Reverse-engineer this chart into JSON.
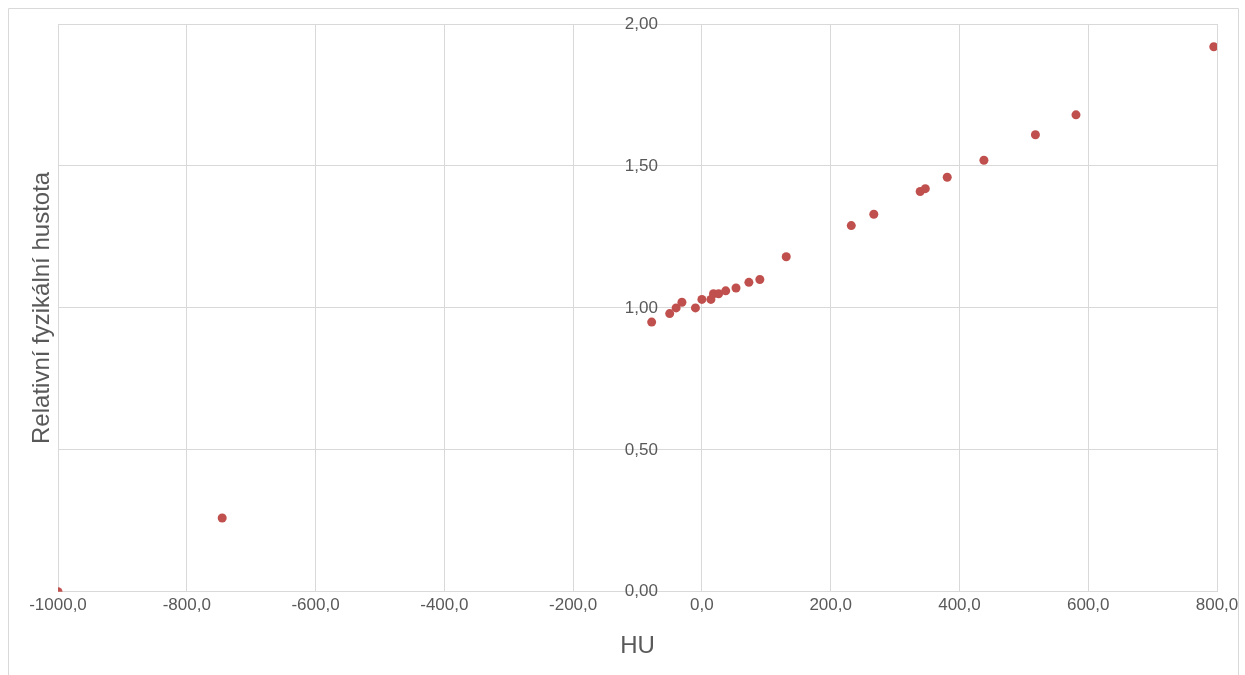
{
  "chart_data": {
    "type": "scatter",
    "xlabel": "HU",
    "ylabel": "Relativní fyzikální hustota",
    "x": [
      -1000,
      -745,
      -78,
      -50,
      -40,
      -31,
      -10,
      0,
      14,
      18,
      26,
      37,
      53,
      73,
      90,
      131,
      232,
      267,
      339,
      347,
      381,
      438,
      518,
      581,
      795
    ],
    "series": [
      {
        "color": "#c0504d",
        "values": [
          0,
          0.26,
          0.95,
          0.98,
          1.0,
          1.02,
          1.0,
          1.03,
          1.03,
          1.05,
          1.05,
          1.06,
          1.07,
          1.09,
          1.1,
          1.18,
          1.29,
          1.33,
          1.41,
          1.42,
          1.46,
          1.52,
          1.61,
          1.68,
          1.92
        ]
      }
    ],
    "xlim": [
      -1000,
      800
    ],
    "xticks": [
      {
        "value": -1000,
        "label": "-1000,0"
      },
      {
        "value": -800,
        "label": "-800,0"
      },
      {
        "value": -600,
        "label": "-600,0"
      },
      {
        "value": -400,
        "label": "-400,0"
      },
      {
        "value": -200,
        "label": "-200,0"
      },
      {
        "value": 0,
        "label": "0,0"
      },
      {
        "value": 200,
        "label": "200,0"
      },
      {
        "value": 400,
        "label": "400,0"
      },
      {
        "value": 600,
        "label": "600,0"
      },
      {
        "value": 800,
        "label": "800,0"
      }
    ],
    "ylim": [
      0,
      2
    ],
    "yticks": [
      {
        "value": 0,
        "label": "0,00"
      },
      {
        "value": 0.5,
        "label": "0,50"
      },
      {
        "value": 1,
        "label": "1,00"
      },
      {
        "value": 1.5,
        "label": "1,50"
      },
      {
        "value": 2,
        "label": "2,00"
      }
    ],
    "grid": true,
    "marker": "circle",
    "legend": false
  }
}
